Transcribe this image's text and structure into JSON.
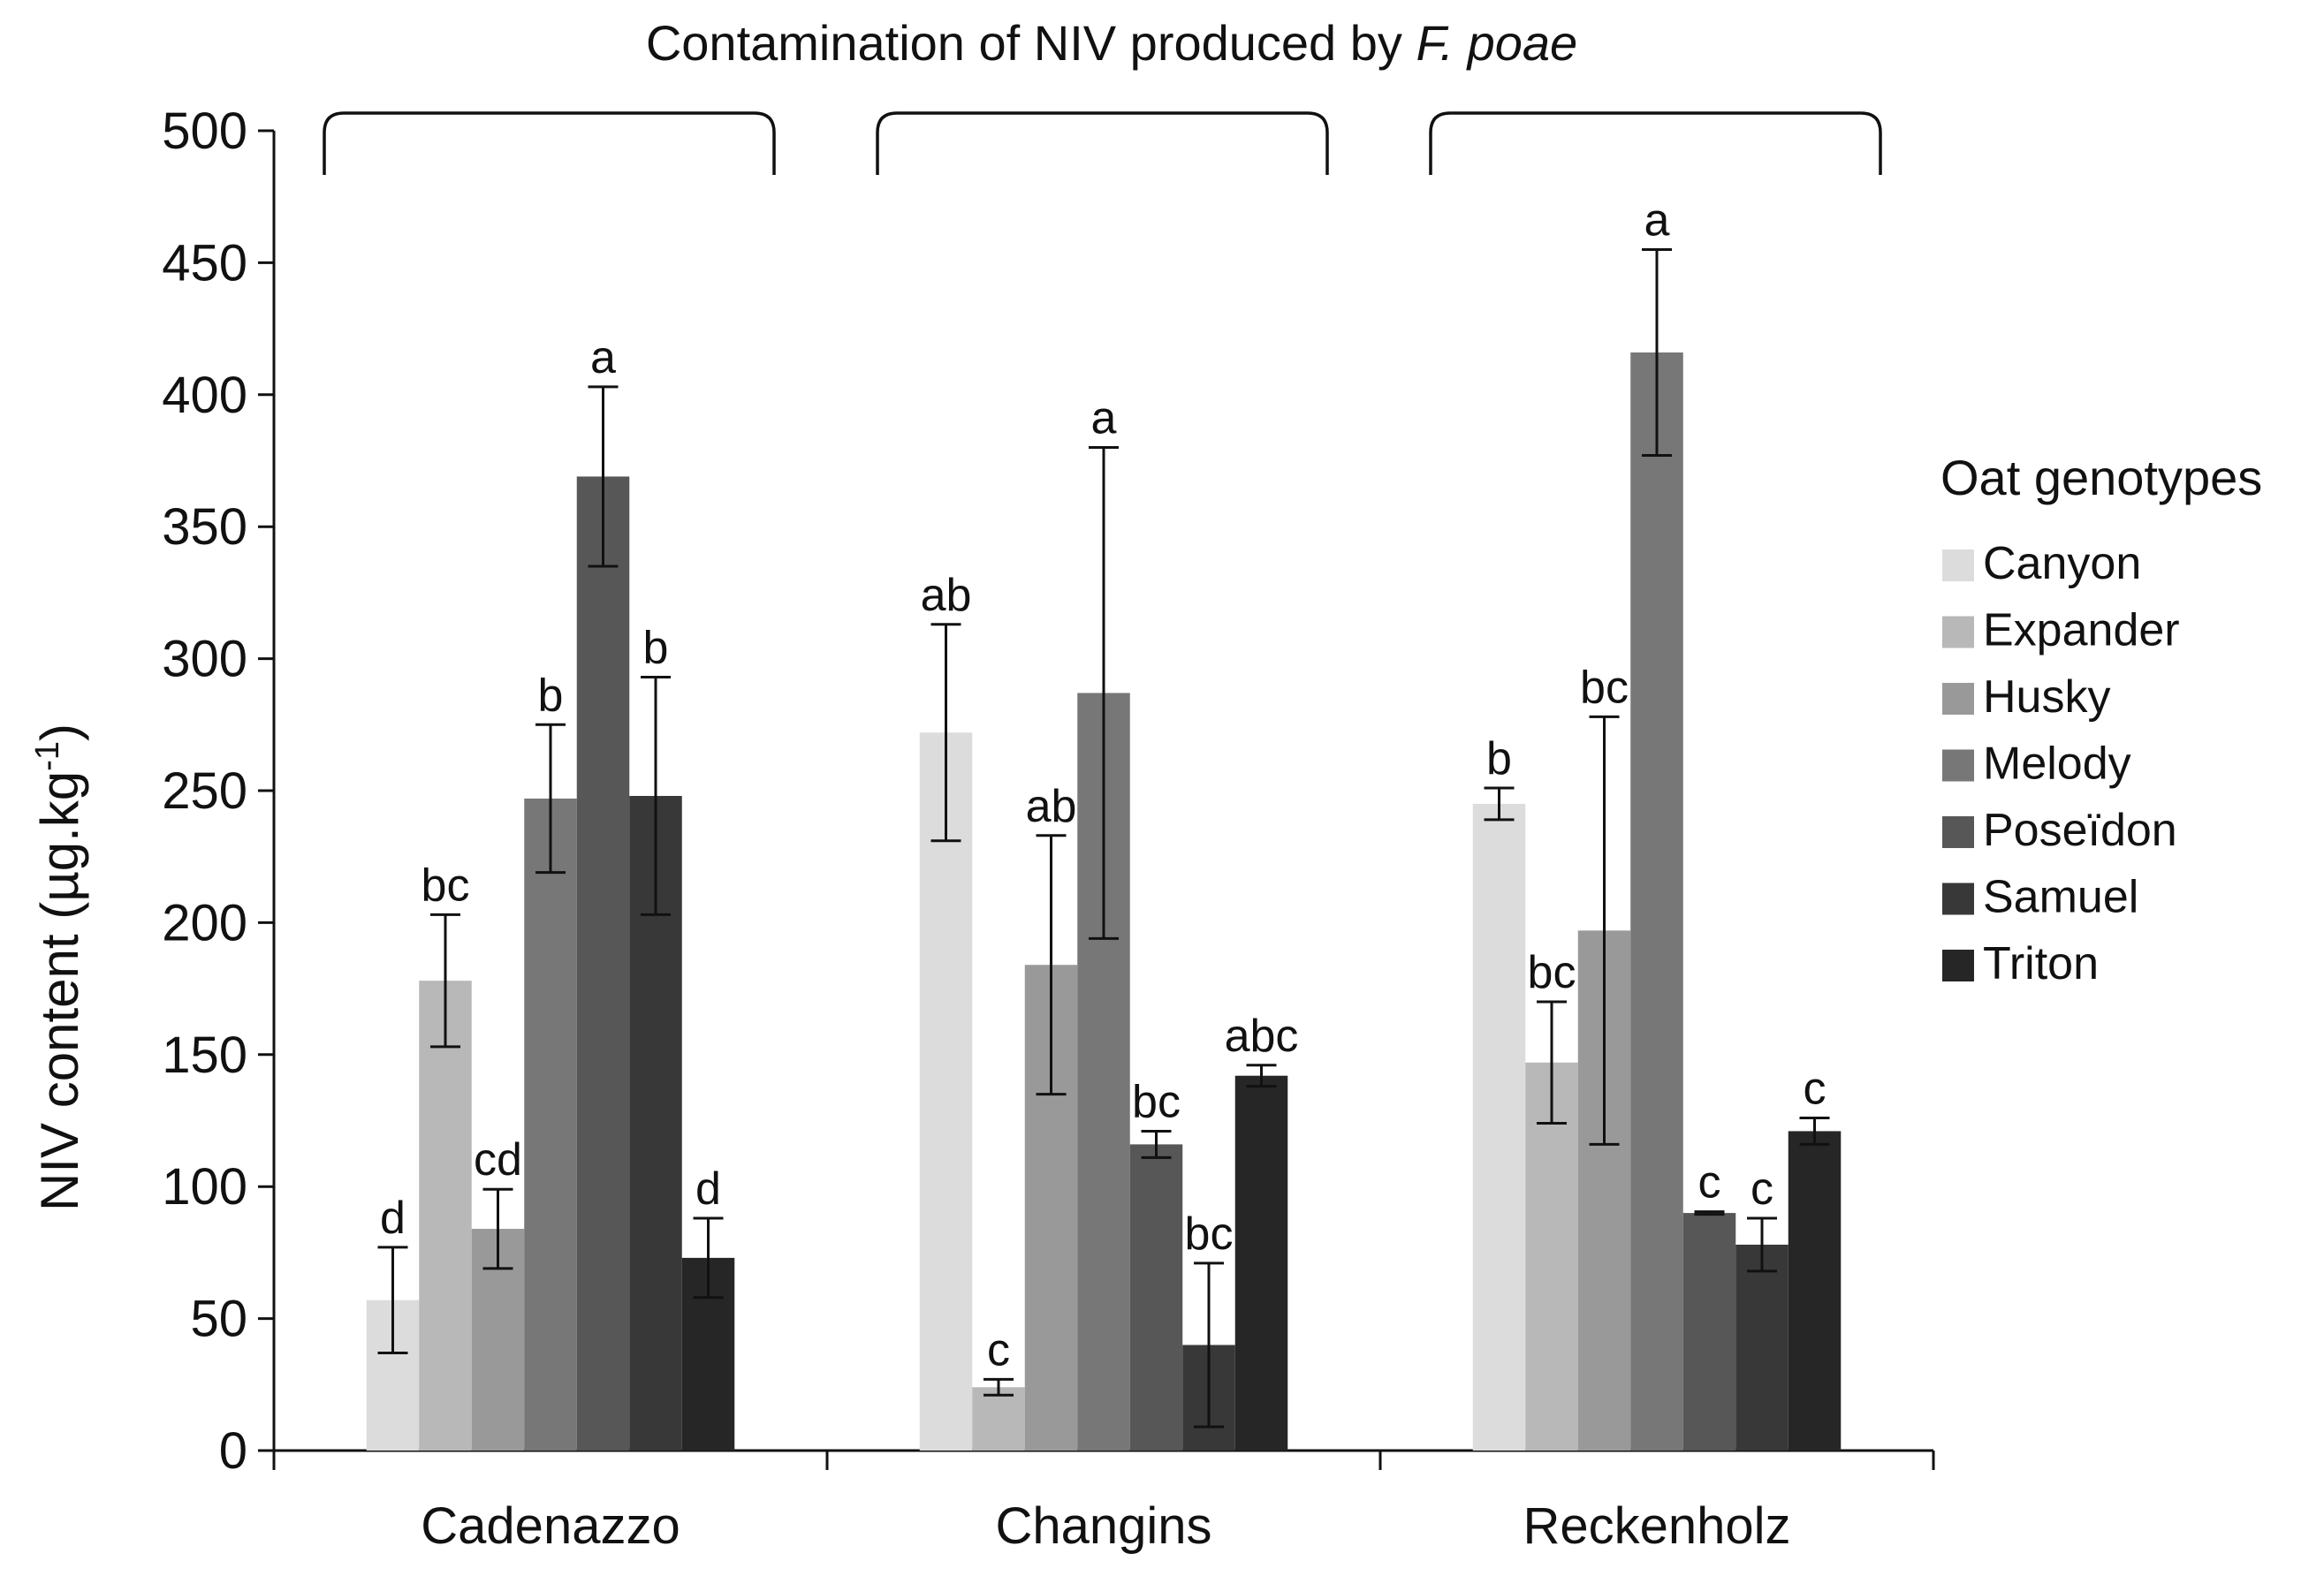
{
  "chart_data": {
    "type": "bar",
    "title": "Contamination of NIV produced by",
    "title_italic": "F. poae",
    "ylabel": "NIV content (µg.kg",
    "ylabel_sup": "-1",
    "ylabel_close": ")",
    "xlabel": "",
    "ylim": [
      0,
      500
    ],
    "yticks": [
      0,
      50,
      100,
      150,
      200,
      250,
      300,
      350,
      400,
      450,
      500
    ],
    "categories": [
      "Cadenazzo",
      "Changins",
      "Reckenholz"
    ],
    "legend_title": "Oat genotypes",
    "legend_position": "right",
    "series": [
      {
        "name": "Canyon",
        "color": "#dcdcdc",
        "values": [
          57,
          272,
          245
        ],
        "err": [
          20,
          41,
          6
        ],
        "letters": [
          "d",
          "ab",
          "b"
        ]
      },
      {
        "name": "Expander",
        "color": "#b8b8b8",
        "values": [
          178,
          24,
          147
        ],
        "err": [
          25,
          3,
          23
        ],
        "letters": [
          "bc",
          "c",
          "bc"
        ]
      },
      {
        "name": "Husky",
        "color": "#999999",
        "values": [
          84,
          184,
          197
        ],
        "err": [
          15,
          49,
          81
        ],
        "letters": [
          "cd",
          "ab",
          "bc"
        ]
      },
      {
        "name": "Melody",
        "color": "#777777",
        "values": [
          247,
          287,
          416
        ],
        "err": [
          28,
          93,
          39
        ],
        "letters": [
          "b",
          "a",
          "a"
        ]
      },
      {
        "name": "Poseïdon",
        "color": "#575757",
        "values": [
          369,
          116,
          90
        ],
        "err": [
          34,
          5,
          0.5
        ],
        "letters": [
          "a",
          "bc",
          "c"
        ]
      },
      {
        "name": "Samuel",
        "color": "#383838",
        "values": [
          248,
          40,
          78
        ],
        "err": [
          45,
          31,
          10
        ],
        "letters": [
          "b",
          "bc",
          "c"
        ]
      },
      {
        "name": "Triton",
        "color": "#262626",
        "values": [
          73,
          142,
          121
        ],
        "err": [
          15,
          4,
          5
        ],
        "letters": [
          "d",
          "abc",
          "c"
        ]
      }
    ]
  }
}
